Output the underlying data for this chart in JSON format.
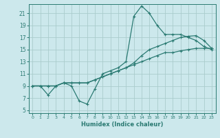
{
  "xlabel": "Humidex (Indice chaleur)",
  "bg_color": "#cce8ec",
  "grid_color": "#aacccc",
  "line_color": "#2a7a72",
  "xlim": [
    -0.5,
    23.5
  ],
  "ylim": [
    4.5,
    22.5
  ],
  "xticks": [
    0,
    1,
    2,
    3,
    4,
    5,
    6,
    7,
    8,
    9,
    10,
    11,
    12,
    13,
    14,
    15,
    16,
    17,
    18,
    19,
    20,
    21,
    22,
    23
  ],
  "yticks": [
    5,
    7,
    9,
    11,
    13,
    15,
    17,
    19,
    21
  ],
  "curve1_x": [
    0,
    1,
    2,
    3,
    4,
    5,
    6,
    7,
    8,
    9,
    10,
    11,
    12,
    13,
    14,
    15,
    16,
    17,
    18,
    19,
    20,
    21,
    22,
    23
  ],
  "curve1_y": [
    9.0,
    9.0,
    7.5,
    9.0,
    9.5,
    9.0,
    6.5,
    6.0,
    8.5,
    11.0,
    11.5,
    12.0,
    13.0,
    20.5,
    22.2,
    21.0,
    19.0,
    17.5,
    17.5,
    17.5,
    17.0,
    16.5,
    15.5,
    15.0
  ],
  "curve2_x": [
    0,
    1,
    2,
    3,
    4,
    5,
    6,
    7,
    8,
    9,
    10,
    11,
    12,
    13,
    14,
    15,
    16,
    17,
    18,
    19,
    20,
    21,
    22,
    23
  ],
  "curve2_y": [
    9.0,
    9.0,
    9.0,
    9.0,
    9.5,
    9.5,
    9.5,
    9.5,
    10.0,
    10.5,
    11.0,
    11.5,
    12.0,
    12.5,
    13.0,
    13.5,
    14.0,
    14.5,
    14.5,
    14.8,
    15.0,
    15.2,
    15.2,
    15.2
  ],
  "curve3_x": [
    0,
    1,
    2,
    3,
    4,
    5,
    6,
    7,
    8,
    9,
    10,
    11,
    12,
    13,
    14,
    15,
    16,
    17,
    18,
    19,
    20,
    21,
    22,
    23
  ],
  "curve3_y": [
    9.0,
    9.0,
    9.0,
    9.0,
    9.5,
    9.5,
    9.5,
    9.5,
    10.0,
    10.5,
    11.0,
    11.5,
    12.0,
    12.8,
    14.0,
    15.0,
    15.5,
    16.0,
    16.5,
    17.0,
    17.2,
    17.3,
    16.5,
    15.2
  ]
}
